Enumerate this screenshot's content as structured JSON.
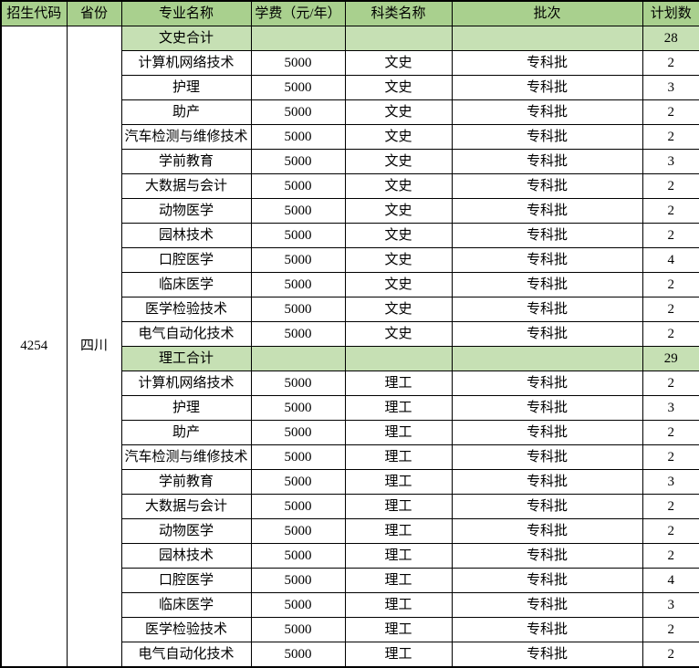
{
  "colors": {
    "header_bg": "#A9D08E",
    "subtotal_bg": "#C6E0B4",
    "border": "#000000",
    "text": "#000000"
  },
  "table": {
    "columns": [
      "招生代码",
      "省份",
      "专业名称",
      "学费（元/年）",
      "科类名称",
      "批次",
      "计划数"
    ],
    "admission_code": "4254",
    "province": "四川",
    "sections": [
      {
        "subtotal_label": "文史合计",
        "subtotal_plan": "28",
        "rows": [
          {
            "major": "计算机网络技术",
            "tuition": "5000",
            "category": "文史",
            "batch": "专科批",
            "plan": "2"
          },
          {
            "major": "护理",
            "tuition": "5000",
            "category": "文史",
            "batch": "专科批",
            "plan": "3"
          },
          {
            "major": "助产",
            "tuition": "5000",
            "category": "文史",
            "batch": "专科批",
            "plan": "2"
          },
          {
            "major": "汽车检测与维修技术",
            "tuition": "5000",
            "category": "文史",
            "batch": "专科批",
            "plan": "2"
          },
          {
            "major": "学前教育",
            "tuition": "5000",
            "category": "文史",
            "batch": "专科批",
            "plan": "3"
          },
          {
            "major": "大数据与会计",
            "tuition": "5000",
            "category": "文史",
            "batch": "专科批",
            "plan": "2"
          },
          {
            "major": "动物医学",
            "tuition": "5000",
            "category": "文史",
            "batch": "专科批",
            "plan": "2"
          },
          {
            "major": "园林技术",
            "tuition": "5000",
            "category": "文史",
            "batch": "专科批",
            "plan": "2"
          },
          {
            "major": "口腔医学",
            "tuition": "5000",
            "category": "文史",
            "batch": "专科批",
            "plan": "4"
          },
          {
            "major": "临床医学",
            "tuition": "5000",
            "category": "文史",
            "batch": "专科批",
            "plan": "2"
          },
          {
            "major": "医学检验技术",
            "tuition": "5000",
            "category": "文史",
            "batch": "专科批",
            "plan": "2"
          },
          {
            "major": "电气自动化技术",
            "tuition": "5000",
            "category": "文史",
            "batch": "专科批",
            "plan": "2"
          }
        ]
      },
      {
        "subtotal_label": "理工合计",
        "subtotal_plan": "29",
        "rows": [
          {
            "major": "计算机网络技术",
            "tuition": "5000",
            "category": "理工",
            "batch": "专科批",
            "plan": "2"
          },
          {
            "major": "护理",
            "tuition": "5000",
            "category": "理工",
            "batch": "专科批",
            "plan": "3"
          },
          {
            "major": "助产",
            "tuition": "5000",
            "category": "理工",
            "batch": "专科批",
            "plan": "2"
          },
          {
            "major": "汽车检测与维修技术",
            "tuition": "5000",
            "category": "理工",
            "batch": "专科批",
            "plan": "2"
          },
          {
            "major": "学前教育",
            "tuition": "5000",
            "category": "理工",
            "batch": "专科批",
            "plan": "3"
          },
          {
            "major": "大数据与会计",
            "tuition": "5000",
            "category": "理工",
            "batch": "专科批",
            "plan": "2"
          },
          {
            "major": "动物医学",
            "tuition": "5000",
            "category": "理工",
            "batch": "专科批",
            "plan": "2"
          },
          {
            "major": "园林技术",
            "tuition": "5000",
            "category": "理工",
            "batch": "专科批",
            "plan": "2"
          },
          {
            "major": "口腔医学",
            "tuition": "5000",
            "category": "理工",
            "batch": "专科批",
            "plan": "4"
          },
          {
            "major": "临床医学",
            "tuition": "5000",
            "category": "理工",
            "batch": "专科批",
            "plan": "3"
          },
          {
            "major": "医学检验技术",
            "tuition": "5000",
            "category": "理工",
            "batch": "专科批",
            "plan": "2"
          },
          {
            "major": "电气自动化技术",
            "tuition": "5000",
            "category": "理工",
            "batch": "专科批",
            "plan": "2"
          }
        ]
      }
    ]
  }
}
